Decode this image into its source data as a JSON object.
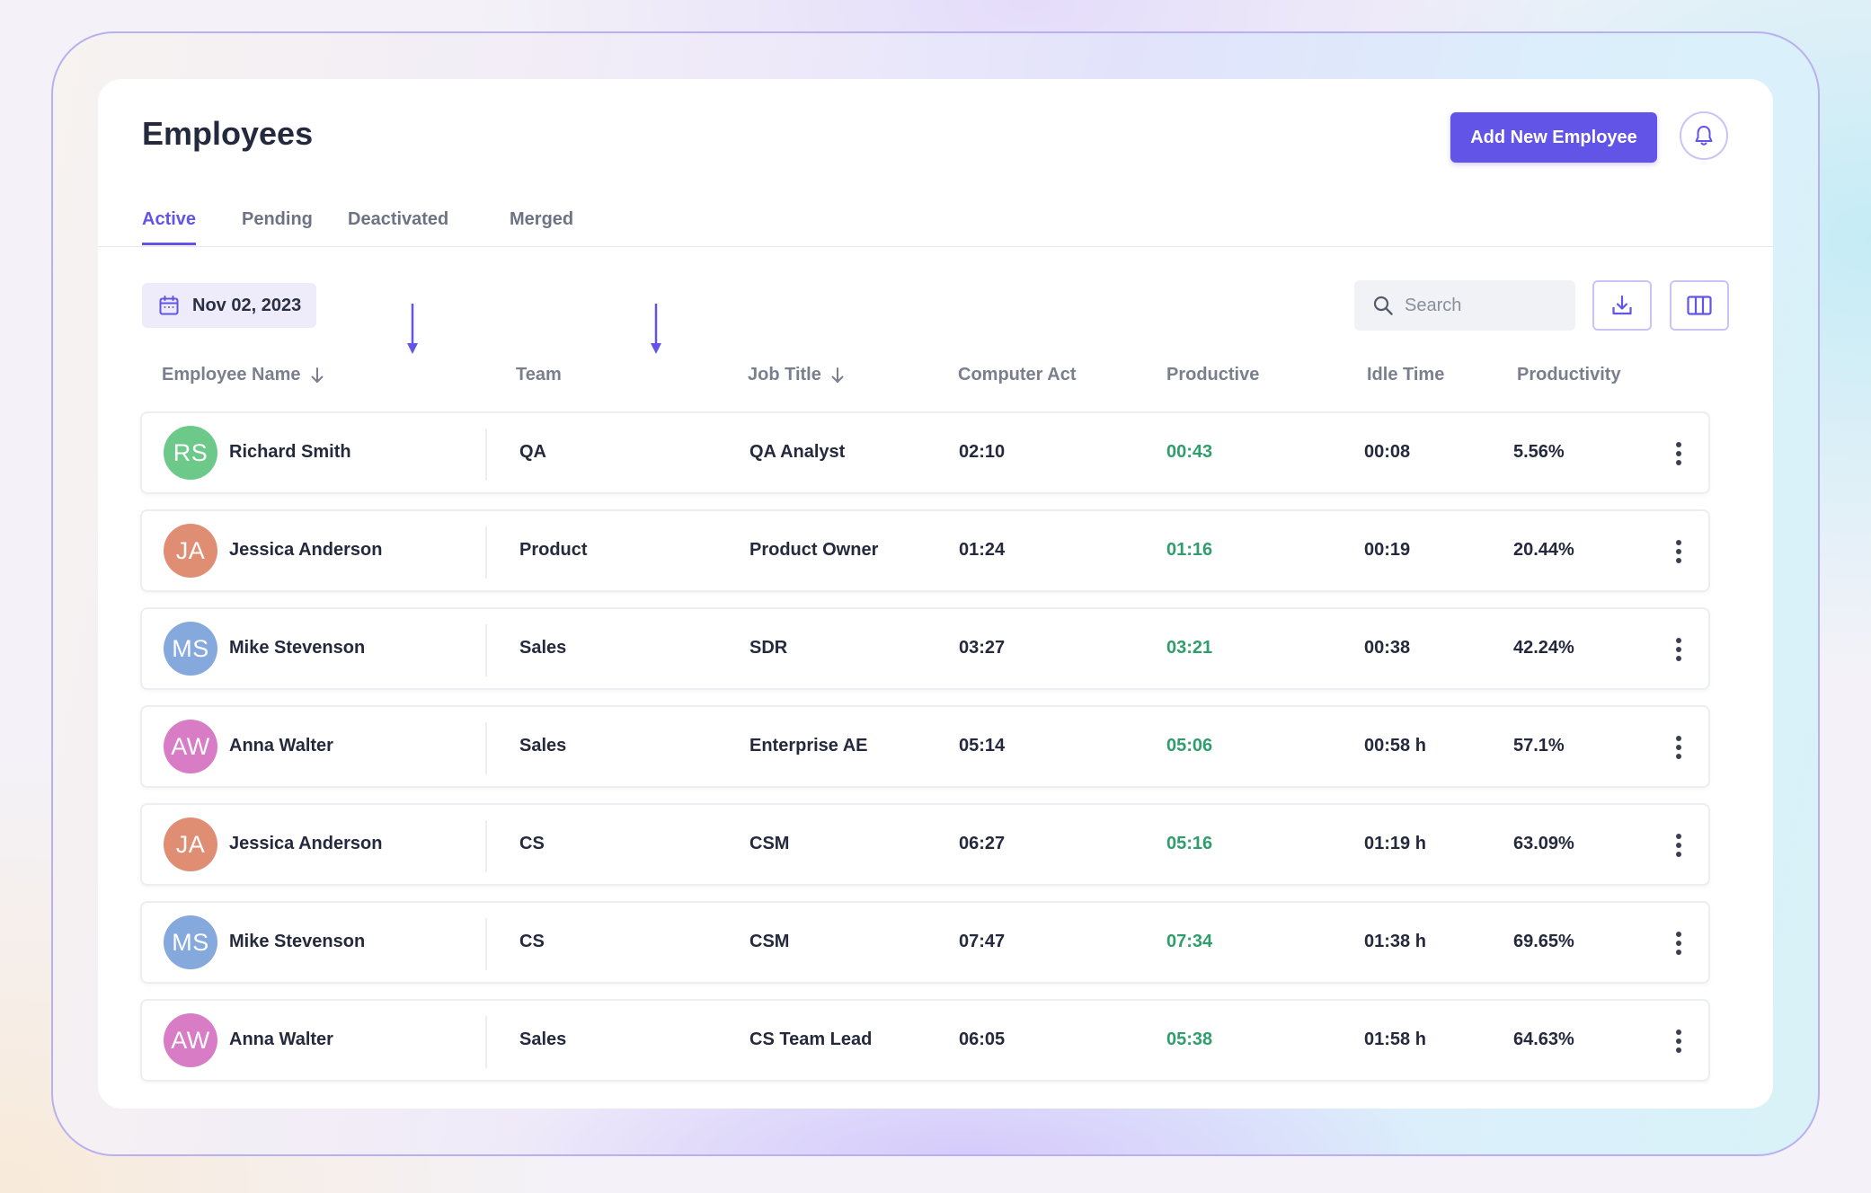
{
  "page": {
    "title": "Employees"
  },
  "header": {
    "add_button": "Add New Employee"
  },
  "tabs": [
    {
      "label": "Active",
      "active": true
    },
    {
      "label": "Pending",
      "active": false
    },
    {
      "label": "Deactivated",
      "active": false
    },
    {
      "label": "Merged",
      "active": false
    }
  ],
  "toolbar": {
    "date": "Nov 02, 2023",
    "search_placeholder": "Search"
  },
  "columns": {
    "name": "Employee Name",
    "team": "Team",
    "job": "Job Title",
    "computer": "Computer Act",
    "productive": "Productive",
    "idle": "Idle Time",
    "productivity": "Productivity"
  },
  "colors": {
    "accent": "#6254e7",
    "productive": "#2f9d6c"
  },
  "rows": [
    {
      "initials": "RS",
      "name": "Richard Smith",
      "team": "QA",
      "job": "QA Analyst",
      "computer": "02:10",
      "productive": "00:43",
      "idle": "00:08",
      "productivity": "5.56%",
      "avatar_color": "#6cc98a"
    },
    {
      "initials": "JA",
      "name": "Jessica Anderson",
      "team": "Product",
      "job": "Product Owner",
      "computer": "01:24",
      "productive": "01:16",
      "idle": "00:19",
      "productivity": "20.44%",
      "avatar_color": "#e08e73"
    },
    {
      "initials": "MS",
      "name": "Mike Stevenson",
      "team": "Sales",
      "job": "SDR",
      "computer": "03:27",
      "productive": "03:21",
      "idle": "00:38",
      "productivity": "42.24%",
      "avatar_color": "#85a9dd"
    },
    {
      "initials": "AW",
      "name": "Anna Walter",
      "team": "Sales",
      "job": "Enterprise AE",
      "computer": "05:14",
      "productive": "05:06",
      "idle": "00:58 h",
      "productivity": "57.1%",
      "avatar_color": "#d97cc6"
    },
    {
      "initials": "JA",
      "name": "Jessica Anderson",
      "team": "CS",
      "job": "CSM",
      "computer": "06:27",
      "productive": "05:16",
      "idle": "01:19 h",
      "productivity": "63.09%",
      "avatar_color": "#e08e73"
    },
    {
      "initials": "MS",
      "name": "Mike Stevenson",
      "team": "CS",
      "job": "CSM",
      "computer": "07:47",
      "productive": "07:34",
      "idle": "01:38 h",
      "productivity": "69.65%",
      "avatar_color": "#85a9dd"
    },
    {
      "initials": "AW",
      "name": "Anna Walter",
      "team": "Sales",
      "job": "CS Team Lead",
      "computer": "06:05",
      "productive": "05:38",
      "idle": "01:58 h",
      "productivity": "64.63%",
      "avatar_color": "#d97cc6"
    }
  ]
}
